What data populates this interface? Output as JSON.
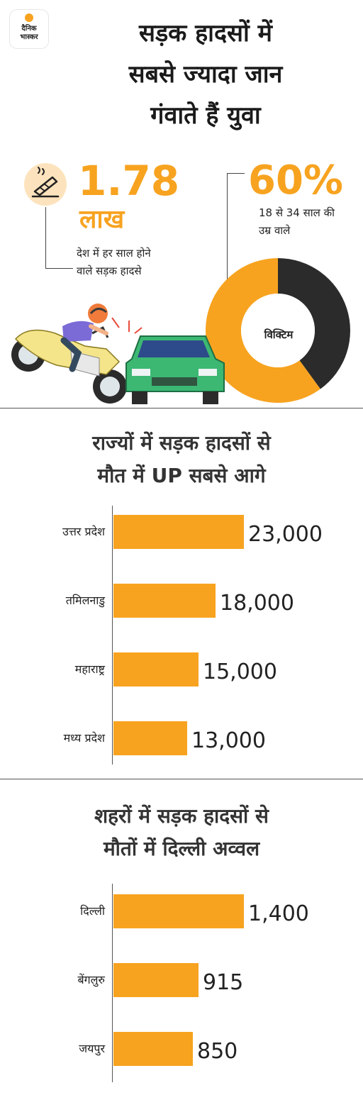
{
  "logo": {
    "line1": "दैनिक",
    "line2": "भास्कर"
  },
  "title": {
    "line1": "सड़क हादसों में",
    "line2": "सबसे ज्यादा जान",
    "line3": "गंवाते हैं युवा"
  },
  "stat_accidents": {
    "number": "1.78",
    "unit": "लाख",
    "desc_line1": "देश में हर साल होने",
    "desc_line2": "वाले सड़क हादसे"
  },
  "stat_youth": {
    "number": "60%",
    "desc_line1": "18 से 34 साल की",
    "desc_line2": "उम्र वाले",
    "donut_label": "विक्टिम"
  },
  "colors": {
    "accent": "#f7a320",
    "dark": "#2b2b2b",
    "light_orange": "#fde3bd"
  },
  "section_states": {
    "title_line1": "राज्यों में सड़क हादसों से",
    "title_line2": "मौत में UP सबसे आगे"
  },
  "section_cities": {
    "title_line1": "शहरों में सड़क हादसों से",
    "title_line2": "मौतों में दिल्ली अव्वल"
  },
  "chart_data": [
    {
      "type": "pie",
      "categories": [
        "18 से 34 साल की उम्र वाले",
        ""
      ],
      "values": [
        60,
        40
      ],
      "colors": [
        "#f7a320",
        "#2b2b2b"
      ],
      "center_label": "विक्टिम"
    },
    {
      "type": "bar",
      "orientation": "horizontal",
      "title": "राज्यों में सड़क हादसों से मौत में UP सबसे आगे",
      "categories": [
        "उत्तर प्रदेश",
        "तमिलनाडु",
        "महाराष्ट्र",
        "मध्य प्रदेश"
      ],
      "values": [
        23000,
        18000,
        15000,
        13000
      ],
      "value_labels": [
        "23,000",
        "18,000",
        "15,000",
        "13,000"
      ],
      "xlim": [
        0,
        23000
      ],
      "grid": false
    },
    {
      "type": "bar",
      "orientation": "horizontal",
      "title": "शहरों में सड़क हादसों से मौतों में दिल्ली अव्वल",
      "categories": [
        "दिल्ली",
        "बेंगलुरु",
        "जयपुर"
      ],
      "values": [
        1400,
        915,
        850
      ],
      "value_labels": [
        "1,400",
        "915",
        "850"
      ],
      "xlim": [
        0,
        1400
      ],
      "grid": false
    }
  ]
}
